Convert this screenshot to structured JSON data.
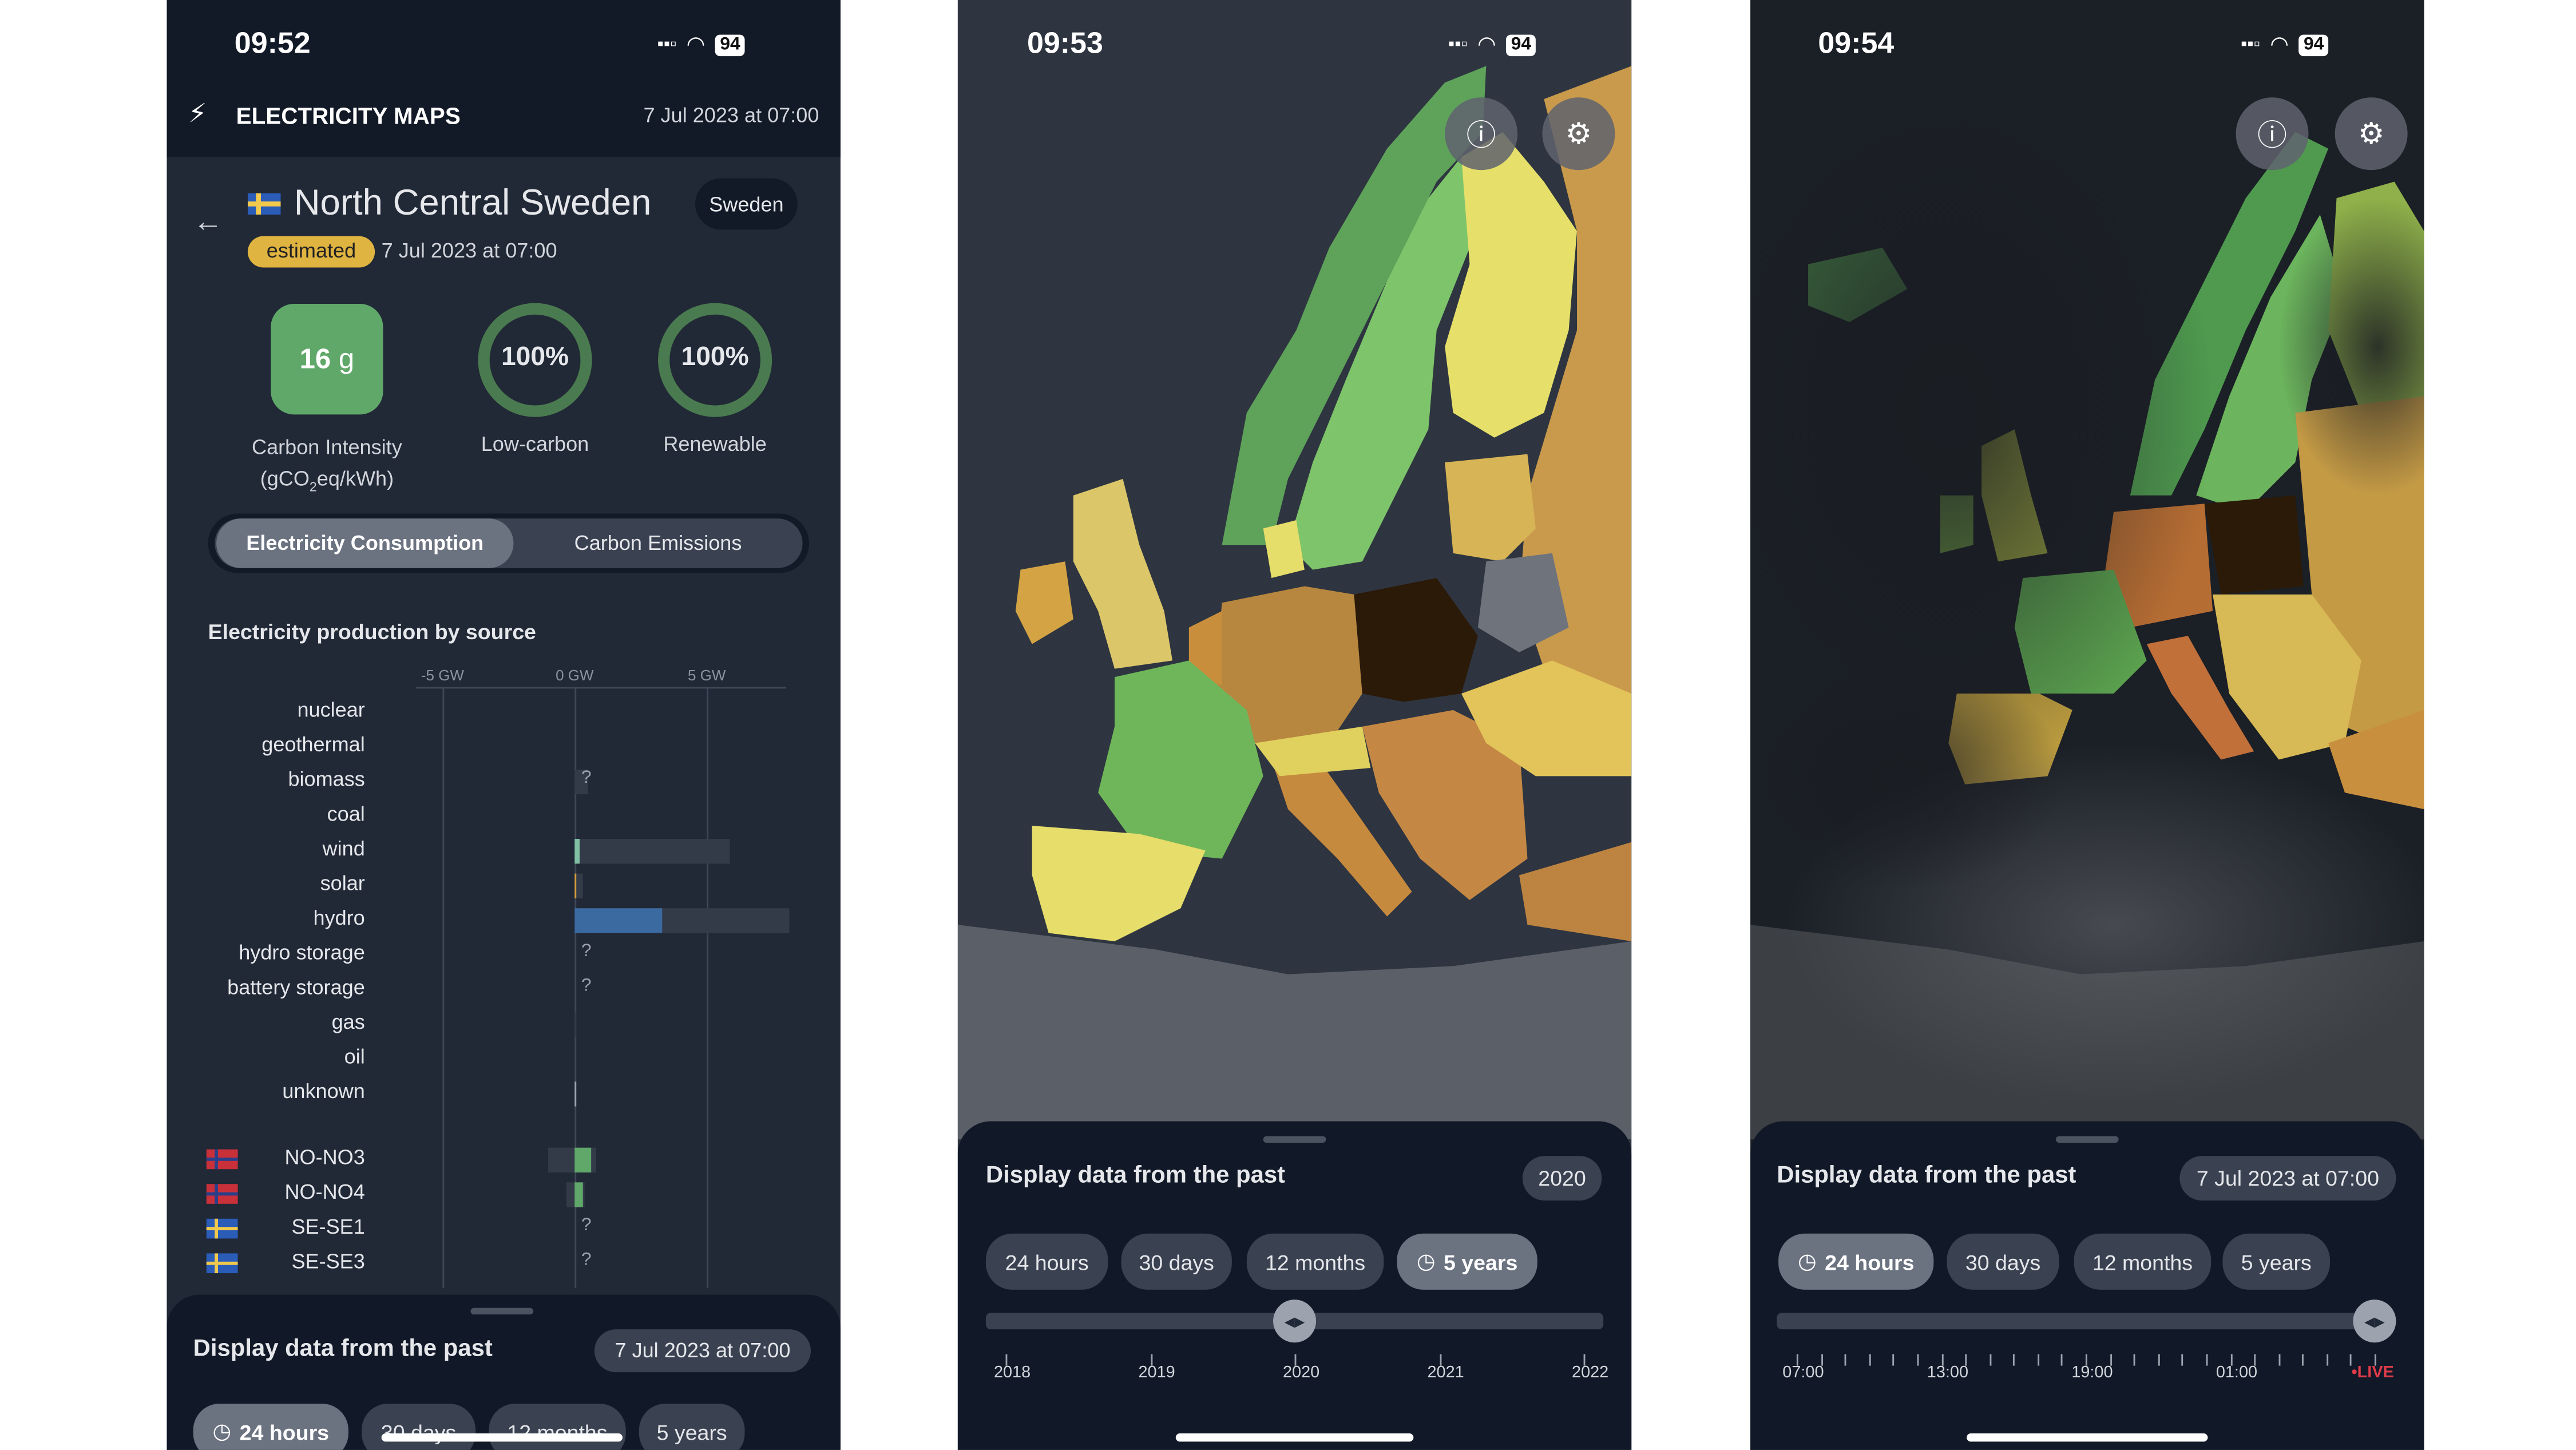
{
  "colors": {
    "background": "#111827",
    "panel": "#212836",
    "accent_green": "#5fa86a",
    "estimated": "#e0b440",
    "hydro": "#3b6aa0",
    "wind": "#7fbfa4",
    "live": "#e03b4a"
  },
  "screens": [
    {
      "status": {
        "time": "09:52",
        "battery": "94"
      },
      "app": {
        "name": "ELECTRICITY MAPS",
        "datetime": "7 Jul 2023 at 07:00",
        "logo_icon": "bolt-icon"
      },
      "zone": {
        "name": "North Central Sweden",
        "country": "Sweden",
        "badge": "estimated",
        "datetime": "7 Jul 2023 at 07:00"
      },
      "metrics": {
        "carbon_intensity": {
          "value": "16",
          "unit": "g",
          "label": "Carbon Intensity",
          "sublabel_pre": "(gCO",
          "sublabel_sub": "2",
          "sublabel_post": "eq/kWh)"
        },
        "low_carbon": {
          "value": "100%",
          "label": "Low-carbon",
          "fraction": 1.0
        },
        "renewable": {
          "value": "100%",
          "label": "Renewable",
          "fraction": 1.0
        }
      },
      "toggle": {
        "options": [
          "Electricity Consumption",
          "Carbon Emissions"
        ],
        "active": 0
      },
      "time_sheet": {
        "title": "Display data from the past",
        "selected": "7 Jul 2023 at 07:00",
        "ranges": [
          "24 hours",
          "30 days",
          "12 months",
          "5 years"
        ],
        "active": 0
      }
    },
    {
      "status": {
        "time": "09:53",
        "battery": "94"
      },
      "time_sheet": {
        "title": "Display data from the past",
        "selected": "2020",
        "ranges": [
          "24 hours",
          "30 days",
          "12 months",
          "5 years"
        ],
        "active": 3,
        "ticks": [
          "2018",
          "2019",
          "2020",
          "2021",
          "2022"
        ],
        "slider_fraction": 0.5
      }
    },
    {
      "status": {
        "time": "09:54",
        "battery": "94"
      },
      "time_sheet": {
        "title": "Display data from the past",
        "selected": "7 Jul 2023 at 07:00",
        "ranges": [
          "24 hours",
          "30 days",
          "12 months",
          "5 years"
        ],
        "active": 0,
        "ticks": [
          "07:00",
          "13:00",
          "19:00",
          "01:00"
        ],
        "live": "LIVE",
        "slider_fraction": 1.0
      }
    }
  ],
  "chart_data": {
    "type": "bar",
    "title": "Electricity production by source",
    "x_ticks": [
      "-5 GW",
      "0 GW",
      "5 GW"
    ],
    "xlim": [
      -6,
      8
    ],
    "unit": "GW",
    "sources": [
      {
        "name": "nuclear",
        "value": 0,
        "capacity": 0
      },
      {
        "name": "geothermal",
        "value": 0,
        "capacity": 0
      },
      {
        "name": "biomass",
        "value": null,
        "capacity": 0.5,
        "unknown": "?"
      },
      {
        "name": "coal",
        "value": 0,
        "capacity": 0
      },
      {
        "name": "wind",
        "value": 0.2,
        "capacity": 5.9,
        "color": "#7fbfa4"
      },
      {
        "name": "solar",
        "value": 0.05,
        "capacity": 0.3,
        "color": "#d69a3c"
      },
      {
        "name": "hydro",
        "value": 3.3,
        "capacity": 8.1,
        "color": "#3b6aa0"
      },
      {
        "name": "hydro storage",
        "value": null,
        "unknown": "?"
      },
      {
        "name": "battery storage",
        "value": null,
        "unknown": "?"
      },
      {
        "name": "gas",
        "value": 0,
        "capacity": 0.02
      },
      {
        "name": "oil",
        "value": 0,
        "capacity": 0
      },
      {
        "name": "unknown",
        "value": 0.05,
        "capacity": 0.05,
        "color": "#9ca3af"
      }
    ],
    "exchanges": [
      {
        "name": "NO-NO3",
        "flag": "norway",
        "value": 0.6,
        "capacity": [
          -1.0,
          0.8
        ],
        "color": "#5fa86a"
      },
      {
        "name": "NO-NO4",
        "flag": "norway",
        "value": 0.3,
        "capacity": [
          -0.3,
          0.4
        ],
        "color": "#5fa86a"
      },
      {
        "name": "SE-SE1",
        "flag": "sweden",
        "value": null,
        "unknown": "?"
      },
      {
        "name": "SE-SE3",
        "flag": "sweden",
        "value": null,
        "unknown": "?"
      }
    ]
  }
}
